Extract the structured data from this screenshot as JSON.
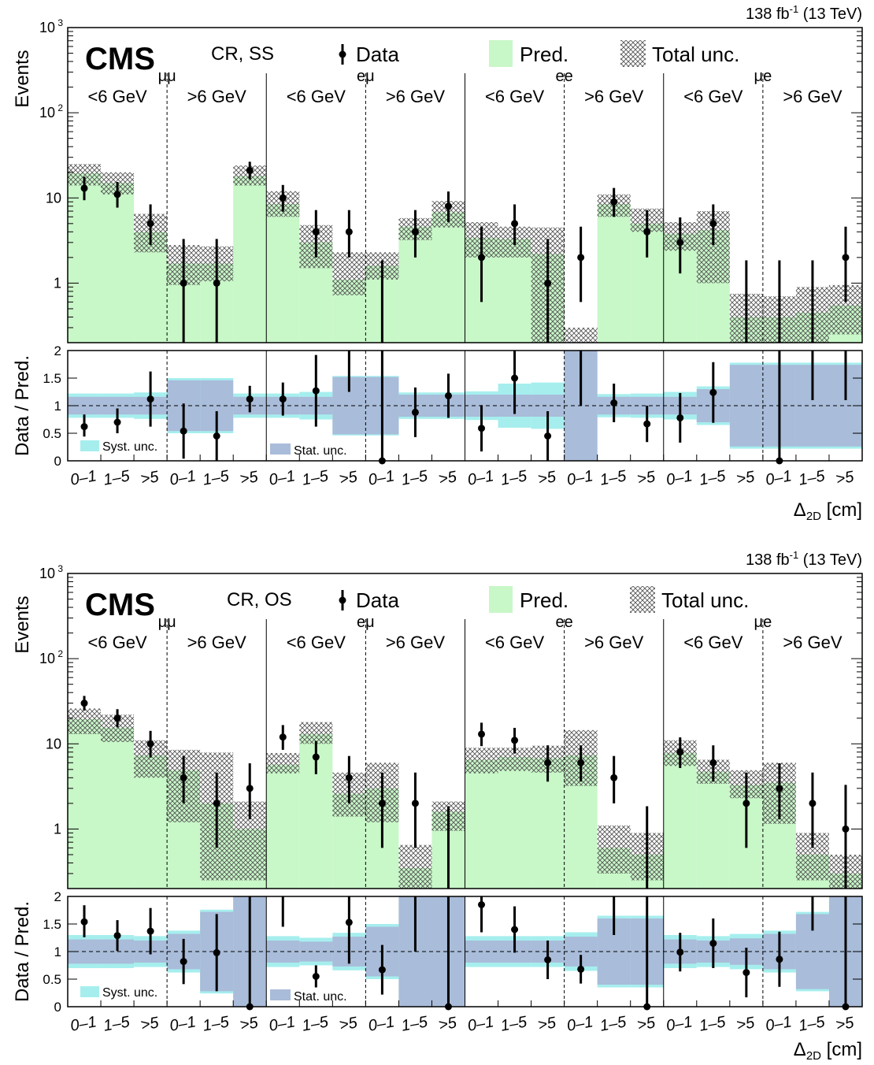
{
  "colors": {
    "pred": "#c8f7c8",
    "stat": "#a9bcd9",
    "syst": "#a6eeee",
    "data": "#000000",
    "hatch": "#555555"
  },
  "chart_data": [
    {
      "type": "bar",
      "title": "",
      "lumi": "138 fb",
      "lumi_sup": "-1",
      "lumi_energy": "(13 TeV)",
      "cms_label": "CMS",
      "region": "CR, SS",
      "legend": {
        "data": "Data",
        "pred": "Pred.",
        "total": "Total unc.",
        "syst": "Syst. unc.",
        "stat": "Stat. unc."
      },
      "ylabel": "Events",
      "ratio_ylabel": "Data / Pred.",
      "xlabel": "Δ",
      "xlabel_sub": "2D",
      "xlabel_unit": "[cm]",
      "yscale": "log",
      "ylim": [
        0.2,
        1000
      ],
      "yticks": [
        "1",
        "10",
        "10",
        "10"
      ],
      "ytick_sups": [
        "",
        "",
        "2",
        "3"
      ],
      "ratio_ylim": [
        0,
        2
      ],
      "ratio_yticks": [
        "0",
        "0.5",
        "1",
        "1.5",
        "2"
      ],
      "channels": [
        "μμ",
        "eμ",
        "ee",
        "μe"
      ],
      "mass_labels": [
        "<6 GeV",
        ">6 GeV"
      ],
      "categories": [
        "0–1",
        "1–5",
        ">5",
        "0–1",
        "1–5",
        ">5",
        "0–1",
        "1–5",
        ">5",
        "0–1",
        "1–5",
        ">5",
        "0–1",
        "1–5",
        ">5",
        "0–1",
        "1–5",
        ">5",
        "0–1",
        "1–5",
        ">5",
        "0–1",
        "1–5",
        ">5"
      ],
      "bin_edges": [
        0,
        1,
        2,
        3,
        4,
        5,
        6,
        7,
        8,
        9,
        10,
        11,
        12,
        13,
        14,
        15,
        16,
        17,
        18,
        19,
        20,
        21,
        22,
        23,
        24
      ],
      "pred": [
        19.5,
        15.0,
        4.0,
        1.7,
        1.7,
        18.0,
        8.5,
        3.0,
        1.1,
        1.6,
        4.6,
        6.8,
        3.4,
        3.3,
        2.2,
        0.1,
        8.5,
        5.0,
        3.8,
        4.2,
        0.4,
        0.4,
        0.45,
        0.55
      ],
      "unc_low": [
        14.0,
        11.0,
        2.3,
        0.95,
        1.05,
        14.0,
        6.0,
        1.5,
        0.72,
        1.1,
        3.2,
        4.5,
        2.0,
        2.0,
        0.2,
        0.1,
        6.0,
        4.0,
        2.4,
        1.0,
        0.2,
        0.2,
        0.2,
        0.25
      ],
      "unc_high": [
        25.0,
        20.0,
        6.5,
        2.8,
        2.7,
        24.0,
        12.0,
        4.8,
        2.3,
        2.3,
        5.8,
        9.2,
        5.2,
        4.6,
        4.5,
        0.3,
        11.0,
        7.5,
        5.2,
        7.0,
        0.75,
        0.7,
        0.9,
        0.95
      ],
      "data": [
        13,
        11,
        5,
        1,
        1,
        21,
        10,
        4,
        4,
        null,
        4,
        8,
        2,
        5,
        1,
        2,
        9,
        4,
        3,
        5,
        null,
        null,
        null,
        2
      ],
      "data_err_low": [
        3.6,
        3.3,
        2.2,
        0.8,
        0.8,
        4.5,
        3.1,
        2.0,
        2.0,
        null,
        2.0,
        2.8,
        1.4,
        2.2,
        0.8,
        1.4,
        3.0,
        2.0,
        1.7,
        2.2,
        null,
        null,
        null,
        1.4
      ],
      "data_err_high": [
        4.7,
        4.4,
        3.4,
        2.3,
        2.3,
        5.6,
        4.2,
        3.2,
        3.2,
        1.85,
        3.2,
        3.9,
        2.6,
        3.4,
        2.3,
        2.6,
        4.1,
        3.2,
        2.9,
        3.4,
        1.85,
        1.85,
        1.85,
        2.6
      ],
      "ratio": [
        0.62,
        0.7,
        1.12,
        0.54,
        0.45,
        1.12,
        1.12,
        1.27,
        null,
        0.0,
        0.88,
        1.18,
        0.59,
        1.5,
        0.45,
        null,
        1.05,
        0.67,
        0.78,
        1.24,
        null,
        0.0,
        null,
        null
      ],
      "ratio_err_low": [
        0.18,
        0.2,
        0.5,
        0.5,
        0.45,
        0.24,
        0.3,
        0.65,
        null,
        0.0,
        0.45,
        0.4,
        0.42,
        0.65,
        0.45,
        null,
        0.35,
        0.33,
        0.45,
        0.55,
        null,
        0.0,
        null,
        null
      ],
      "ratio_err_high": [
        0.22,
        0.25,
        0.5,
        0.5,
        0.45,
        0.24,
        0.3,
        0.65,
        null,
        2.0,
        0.45,
        0.4,
        0.42,
        0.65,
        0.45,
        null,
        0.35,
        0.33,
        0.45,
        0.55,
        null,
        2.0,
        null,
        null
      ],
      "ratio_offscale": [
        null,
        null,
        null,
        null,
        null,
        null,
        null,
        null,
        [
          1.25,
          2.0
        ],
        [
          0.0,
          2.0
        ],
        null,
        null,
        null,
        null,
        null,
        [
          1.0,
          2.0
        ],
        null,
        null,
        null,
        null,
        null,
        [
          0.0,
          2.0
        ],
        [
          1.1,
          2.0
        ],
        [
          1.1,
          2.0
        ]
      ],
      "stat_low": [
        0.84,
        0.84,
        0.84,
        0.54,
        0.54,
        0.84,
        0.84,
        0.84,
        0.48,
        0.48,
        0.8,
        0.8,
        0.8,
        0.8,
        0.8,
        0.0,
        0.84,
        0.84,
        0.84,
        0.7,
        0.26,
        0.26,
        0.26,
        0.26
      ],
      "stat_high": [
        1.16,
        1.16,
        1.16,
        1.46,
        1.46,
        1.16,
        1.16,
        1.16,
        1.52,
        1.52,
        1.2,
        1.2,
        1.2,
        1.2,
        1.2,
        2.0,
        1.16,
        1.16,
        1.16,
        1.3,
        1.74,
        1.74,
        1.74,
        1.74
      ],
      "syst_low": [
        0.78,
        0.78,
        0.76,
        0.5,
        0.5,
        0.78,
        0.78,
        0.75,
        0.46,
        0.46,
        0.76,
        0.76,
        0.74,
        0.6,
        0.58,
        0.0,
        0.79,
        0.78,
        0.75,
        0.65,
        0.22,
        0.22,
        0.22,
        0.22
      ],
      "syst_high": [
        1.22,
        1.22,
        1.24,
        1.5,
        1.5,
        1.22,
        1.22,
        1.25,
        1.54,
        1.54,
        1.24,
        1.24,
        1.26,
        1.4,
        1.42,
        2.0,
        1.21,
        1.22,
        1.25,
        1.35,
        1.78,
        1.78,
        1.78,
        1.78
      ]
    },
    {
      "type": "bar",
      "title": "",
      "lumi": "138 fb",
      "lumi_sup": "-1",
      "lumi_energy": "(13 TeV)",
      "cms_label": "CMS",
      "region": "CR, OS",
      "legend": {
        "data": "Data",
        "pred": "Pred.",
        "total": "Total unc.",
        "syst": "Syst. unc.",
        "stat": "Stat. unc."
      },
      "ylabel": "Events",
      "ratio_ylabel": "Data / Pred.",
      "xlabel": "Δ",
      "xlabel_sub": "2D",
      "xlabel_unit": "[cm]",
      "yscale": "log",
      "ylim": [
        0.2,
        1000
      ],
      "yticks": [
        "1",
        "10",
        "10",
        "10"
      ],
      "ytick_sups": [
        "",
        "",
        "2",
        "3"
      ],
      "ratio_ylim": [
        0,
        2
      ],
      "ratio_yticks": [
        "0",
        "0.5",
        "1",
        "1.5",
        "2"
      ],
      "channels": [
        "μμ",
        "eμ",
        "ee",
        "μe"
      ],
      "mass_labels": [
        "<6 GeV",
        ">6 GeV"
      ],
      "categories": [
        "0–1",
        "1–5",
        ">5",
        "0–1",
        "1–5",
        ">5",
        "0–1",
        "1–5",
        ">5",
        "0–1",
        "1–5",
        ">5",
        "0–1",
        "1–5",
        ">5",
        "0–1",
        "1–5",
        ">5",
        "0–1",
        "1–5",
        ">5",
        "0–1",
        "1–5",
        ">5"
      ],
      "bin_edges": [
        0,
        1,
        2,
        3,
        4,
        5,
        6,
        7,
        8,
        9,
        10,
        11,
        12,
        13,
        14,
        15,
        16,
        17,
        18,
        19,
        20,
        21,
        22,
        23,
        24
      ],
      "pred": [
        19.5,
        15.5,
        7.3,
        4.9,
        2.0,
        1.0,
        5.7,
        13.0,
        2.6,
        3.0,
        0.35,
        1.6,
        6.5,
        7.0,
        6.8,
        7.3,
        0.6,
        0.5,
        7.8,
        4.7,
        3.3,
        3.5,
        0.5,
        0.3
      ],
      "unc_low": [
        13.0,
        10.5,
        4.0,
        1.2,
        0.25,
        0.25,
        4.5,
        10.0,
        1.4,
        1.2,
        0.1,
        0.95,
        4.5,
        4.8,
        4.6,
        3.2,
        0.3,
        0.25,
        5.5,
        3.4,
        2.3,
        1.15,
        0.25,
        0.1
      ],
      "unc_high": [
        26.0,
        22.0,
        11.0,
        8.5,
        7.9,
        2.1,
        7.8,
        18.0,
        4.6,
        6.0,
        0.65,
        2.1,
        9.0,
        9.0,
        9.5,
        14.5,
        1.1,
        0.9,
        11.0,
        6.5,
        4.9,
        6.0,
        0.9,
        0.5
      ],
      "data": [
        30,
        20,
        10,
        4,
        2,
        3,
        12,
        7,
        4,
        2,
        2,
        null,
        13,
        11,
        6,
        6,
        4,
        null,
        8,
        6,
        2,
        3,
        2,
        1
      ],
      "data_err_low": [
        5.4,
        4.4,
        3.1,
        2.0,
        1.4,
        1.7,
        3.5,
        2.6,
        2.0,
        1.4,
        1.4,
        null,
        3.6,
        3.3,
        2.4,
        2.4,
        2.0,
        null,
        2.8,
        2.4,
        1.4,
        1.7,
        1.4,
        0.8
      ],
      "data_err_high": [
        6.5,
        5.5,
        4.2,
        3.2,
        2.6,
        2.9,
        4.6,
        3.8,
        3.2,
        2.6,
        2.6,
        1.85,
        4.7,
        4.4,
        3.6,
        3.6,
        3.2,
        1.85,
        3.9,
        3.6,
        2.6,
        2.9,
        2.6,
        2.3
      ],
      "ratio": [
        1.54,
        1.29,
        1.37,
        0.82,
        0.98,
        null,
        null,
        0.55,
        1.53,
        0.67,
        null,
        null,
        1.85,
        1.4,
        0.85,
        0.68,
        null,
        null,
        0.99,
        1.15,
        0.62,
        0.86,
        null,
        null
      ],
      "ratio_err_low": [
        0.28,
        0.28,
        0.42,
        0.41,
        0.7,
        null,
        null,
        0.2,
        0.75,
        0.45,
        null,
        null,
        0.5,
        0.42,
        0.35,
        0.26,
        null,
        null,
        0.35,
        0.45,
        0.45,
        0.5,
        null,
        null
      ],
      "ratio_err_high": [
        0.3,
        0.28,
        0.42,
        0.41,
        0.7,
        null,
        null,
        0.2,
        0.75,
        0.45,
        null,
        null,
        0.2,
        0.42,
        0.35,
        0.26,
        null,
        null,
        0.35,
        0.45,
        0.45,
        0.5,
        null,
        null
      ],
      "ratio_offscale": [
        null,
        null,
        null,
        null,
        null,
        [
          0.0,
          2.0
        ],
        [
          1.45,
          2.0
        ],
        null,
        null,
        null,
        [
          1.0,
          2.0
        ],
        [
          0.0,
          2.0
        ],
        null,
        null,
        null,
        null,
        [
          1.3,
          2.0
        ],
        [
          0.0,
          2.0
        ],
        null,
        null,
        null,
        null,
        [
          1.38,
          2.0
        ],
        [
          0.0,
          2.0
        ]
      ],
      "stat_low": [
        0.78,
        0.78,
        0.8,
        0.68,
        0.28,
        0.0,
        0.8,
        0.82,
        0.73,
        0.55,
        0.0,
        0.0,
        0.8,
        0.8,
        0.8,
        0.73,
        0.4,
        0.4,
        0.78,
        0.8,
        0.76,
        0.68,
        0.32,
        0.0
      ],
      "stat_high": [
        1.22,
        1.22,
        1.2,
        1.32,
        1.72,
        2.0,
        1.2,
        1.18,
        1.27,
        1.45,
        2.0,
        2.0,
        1.2,
        1.2,
        1.2,
        1.27,
        1.6,
        1.6,
        1.22,
        1.2,
        1.24,
        1.32,
        1.68,
        2.0
      ],
      "syst_low": [
        0.7,
        0.7,
        0.72,
        0.62,
        0.24,
        0.0,
        0.72,
        0.75,
        0.66,
        0.5,
        0.0,
        0.0,
        0.72,
        0.72,
        0.72,
        0.65,
        0.35,
        0.35,
        0.7,
        0.72,
        0.68,
        0.62,
        0.28,
        0.0
      ],
      "syst_high": [
        1.3,
        1.3,
        1.28,
        1.38,
        1.76,
        2.0,
        1.28,
        1.25,
        1.34,
        1.5,
        2.0,
        2.0,
        1.28,
        1.28,
        1.28,
        1.35,
        1.65,
        1.65,
        1.3,
        1.28,
        1.32,
        1.38,
        1.72,
        2.0
      ]
    }
  ]
}
